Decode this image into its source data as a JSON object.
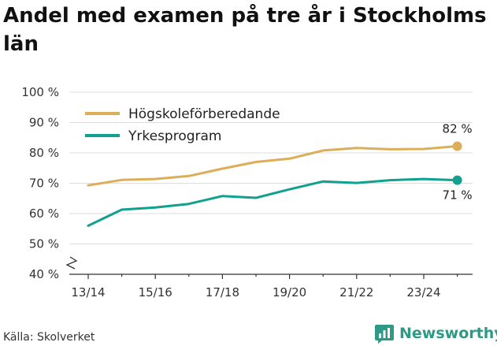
{
  "title": "Andel med examen på tre år i Stockholms län",
  "source": "Källa: Skolverket",
  "brand": "Newsworthy",
  "colors": {
    "series1": "#dcae5a",
    "series2": "#12a08f",
    "grid": "#dddddd",
    "axis": "#333333",
    "brand": "#2e9a86"
  },
  "chart_data": {
    "type": "line",
    "title": "Andel med examen på tre år i Stockholms län",
    "xlabel": "",
    "ylabel": "",
    "x": [
      "13/14",
      "14/15",
      "15/16",
      "16/17",
      "17/18",
      "18/19",
      "19/20",
      "20/21",
      "21/22",
      "22/23",
      "23/24",
      "24/25"
    ],
    "tick_labels": [
      "13/14",
      "15/16",
      "17/18",
      "19/20",
      "21/22",
      "23/24"
    ],
    "ylim": [
      40,
      100
    ],
    "yticks": [
      40,
      50,
      60,
      70,
      80,
      90,
      100
    ],
    "ytick_labels": [
      "40 %",
      "50 %",
      "60 %",
      "70 %",
      "80 %",
      "90 %",
      "100 %"
    ],
    "legend_position": "top-left",
    "grid": true,
    "series": [
      {
        "name": "Högskoleförberedande",
        "values": [
          69.3,
          71.1,
          71.4,
          72.4,
          74.8,
          77.0,
          78.1,
          80.8,
          81.6,
          81.2,
          81.3,
          82.2
        ],
        "end_label": "82 %"
      },
      {
        "name": "Yrkesprogram",
        "values": [
          56.0,
          61.3,
          62.0,
          63.2,
          65.8,
          65.2,
          68.0,
          70.6,
          70.1,
          71.0,
          71.4,
          71.0
        ],
        "end_label": "71 %"
      }
    ]
  }
}
